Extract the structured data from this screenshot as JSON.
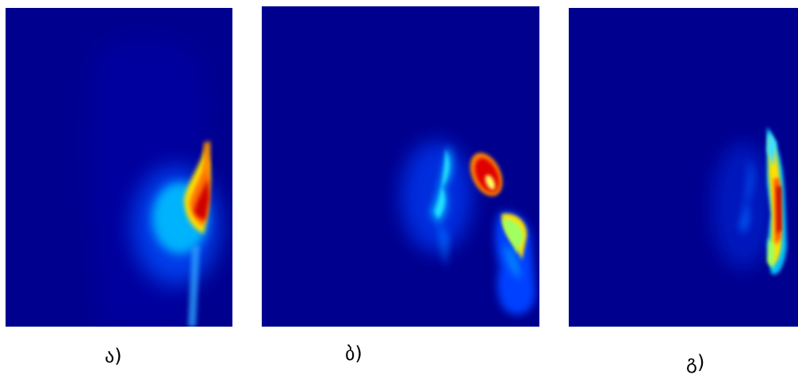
{
  "figure": {
    "panels": [
      {
        "id": "a",
        "caption": "ა)"
      },
      {
        "id": "b",
        "caption": "ბ)"
      },
      {
        "id": "g",
        "caption": "გ)"
      }
    ],
    "colors": {
      "background": "#00008f",
      "colormap": [
        "#00008f",
        "#0000ff",
        "#0080ff",
        "#00ffff",
        "#80ff80",
        "#ffff00",
        "#ff8000",
        "#ff0000",
        "#800000"
      ]
    }
  }
}
